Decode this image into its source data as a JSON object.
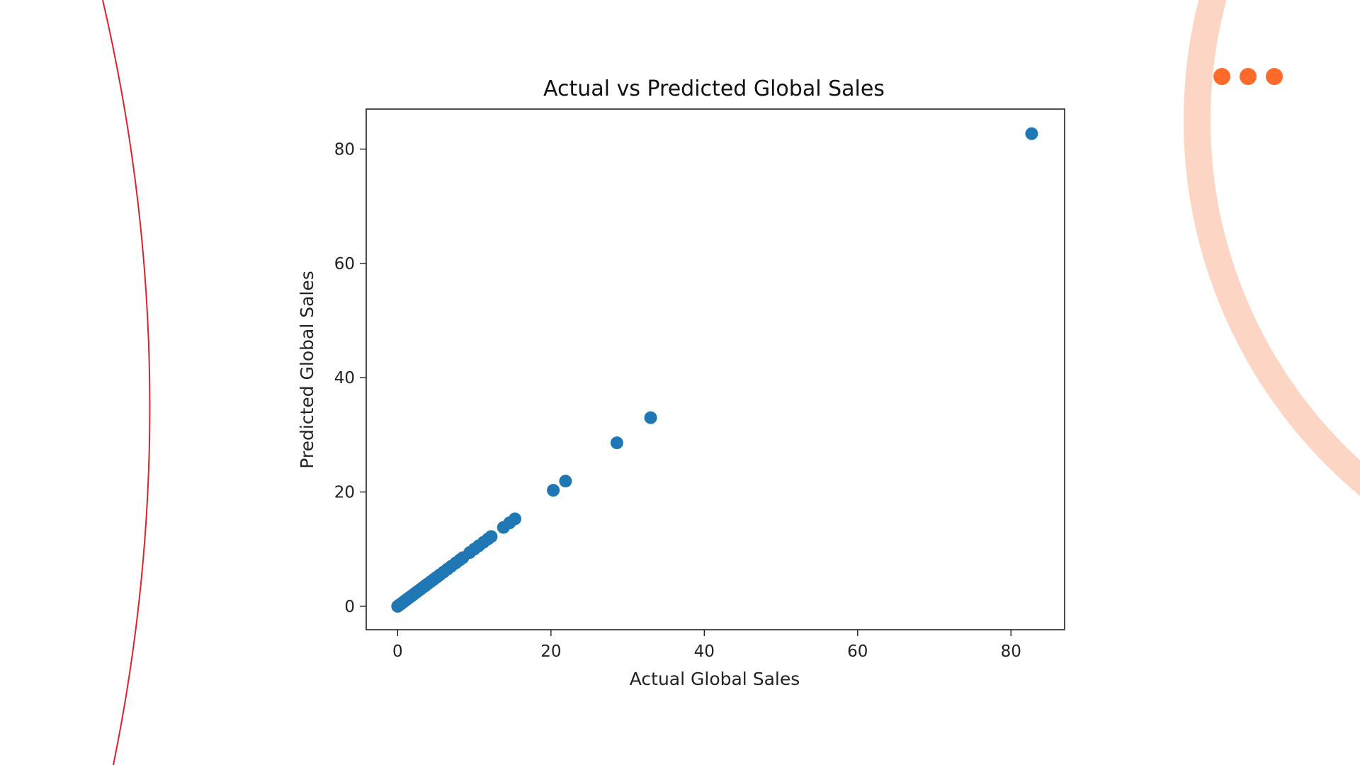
{
  "colors": {
    "accent_dots": "#ff6a2b",
    "ring": "#fdd5c4",
    "left_line": "#e0202a",
    "marker": "#1f77b4"
  },
  "decor": {
    "menu_icon": "more-dots-icon"
  },
  "chart_data": {
    "type": "scatter",
    "title": "Actual vs Predicted Global Sales",
    "xlabel": "Actual Global Sales",
    "ylabel": "Predicted Global Sales",
    "xlim": [
      -4.1,
      87.0
    ],
    "ylim": [
      -4.1,
      87.0
    ],
    "xticks": [
      0,
      20,
      40,
      60,
      80
    ],
    "yticks": [
      0,
      20,
      40,
      60,
      80
    ],
    "grid": false,
    "series": [
      {
        "points": [
          [
            0.0,
            0.0
          ],
          [
            0.1,
            0.1
          ],
          [
            0.2,
            0.2
          ],
          [
            0.3,
            0.3
          ],
          [
            0.5,
            0.5
          ],
          [
            0.7,
            0.7
          ],
          [
            0.9,
            0.9
          ],
          [
            1.1,
            1.1
          ],
          [
            1.3,
            1.3
          ],
          [
            1.5,
            1.5
          ],
          [
            1.8,
            1.8
          ],
          [
            2.1,
            2.1
          ],
          [
            2.4,
            2.4
          ],
          [
            2.7,
            2.7
          ],
          [
            3.0,
            3.0
          ],
          [
            3.3,
            3.3
          ],
          [
            3.6,
            3.6
          ],
          [
            3.9,
            3.9
          ],
          [
            4.3,
            4.3
          ],
          [
            4.7,
            4.7
          ],
          [
            5.1,
            5.1
          ],
          [
            5.5,
            5.5
          ],
          [
            6.0,
            6.0
          ],
          [
            6.5,
            6.5
          ],
          [
            7.0,
            7.0
          ],
          [
            7.6,
            7.6
          ],
          [
            8.1,
            8.1
          ],
          [
            8.5,
            8.5
          ],
          [
            9.4,
            9.4
          ],
          [
            10.0,
            10.0
          ],
          [
            10.6,
            10.6
          ],
          [
            11.2,
            11.2
          ],
          [
            11.8,
            11.8
          ],
          [
            12.2,
            12.2
          ],
          [
            13.8,
            13.8
          ],
          [
            14.6,
            14.6
          ],
          [
            15.3,
            15.3
          ],
          [
            20.3,
            20.3
          ],
          [
            21.9,
            21.9
          ],
          [
            28.6,
            28.6
          ],
          [
            33.0,
            33.0
          ],
          [
            82.7,
            82.7
          ]
        ]
      }
    ]
  }
}
